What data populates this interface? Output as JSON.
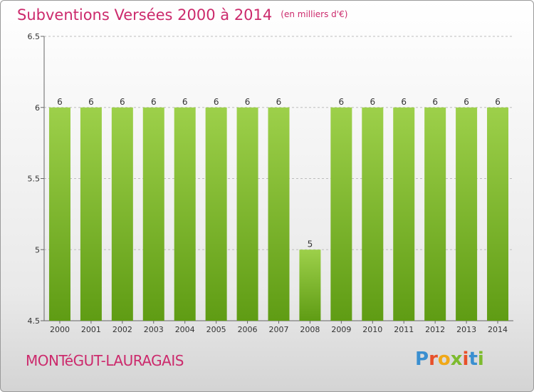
{
  "header": {
    "title": "Subventions Versées 2000 à 2014",
    "unit": "(en milliers d'€)"
  },
  "footer": {
    "commune": "MONTéGUT-LAURAGAIS",
    "logo": "Proxiti"
  },
  "colors": {
    "title": "#cc2a6c",
    "bar_top": "#9dd04a",
    "bar_bottom": "#5f9c14",
    "logo_letters": [
      "#3a8fd0",
      "#e8502a",
      "#f0a818",
      "#7dbb2e",
      "#e8502a",
      "#3a8fd0",
      "#7dbb2e"
    ]
  },
  "chart_data": {
    "type": "bar",
    "title": "Subventions Versées 2000 à 2014",
    "categories": [
      "2000",
      "2001",
      "2002",
      "2003",
      "2004",
      "2005",
      "2006",
      "2007",
      "2008",
      "2009",
      "2010",
      "2011",
      "2012",
      "2013",
      "2014"
    ],
    "values": [
      6,
      6,
      6,
      6,
      6,
      6,
      6,
      6,
      5,
      6,
      6,
      6,
      6,
      6,
      6
    ],
    "ylim": [
      4.5,
      6.5
    ],
    "yticks": [
      "4.5",
      "5",
      "5.5",
      "6",
      "6.5"
    ],
    "grid": "horizontal dashed",
    "xlabel": "",
    "ylabel": ""
  }
}
